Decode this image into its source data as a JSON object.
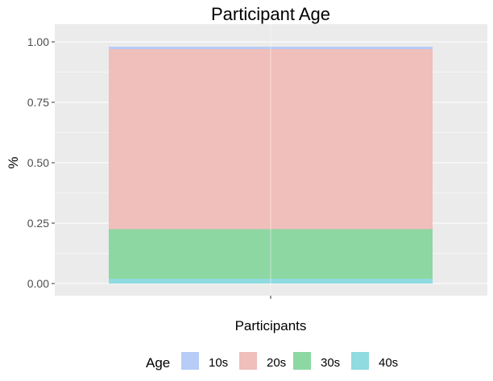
{
  "chart_data": {
    "type": "bar",
    "stacked": true,
    "title": "Participant Age",
    "xlabel": "Participants",
    "ylabel": "%",
    "categories": [
      ""
    ],
    "ylim": [
      0,
      1
    ],
    "yticks": [
      "0.00",
      "0.25",
      "0.50",
      "0.75",
      "1.00"
    ],
    "ytick_values": [
      0,
      0.25,
      0.5,
      0.75,
      1.0
    ],
    "grid": true,
    "legend_position": "bottom",
    "legend_title": "Age",
    "series": [
      {
        "name": "10s",
        "values": [
          0.01
        ],
        "color": "#b7ccf6"
      },
      {
        "name": "20s",
        "values": [
          0.745
        ],
        "color": "#f0bebb"
      },
      {
        "name": "30s",
        "values": [
          0.205
        ],
        "color": "#8dd7a3"
      },
      {
        "name": "40s",
        "values": [
          0.02
        ],
        "color": "#8fdbe0"
      }
    ]
  }
}
